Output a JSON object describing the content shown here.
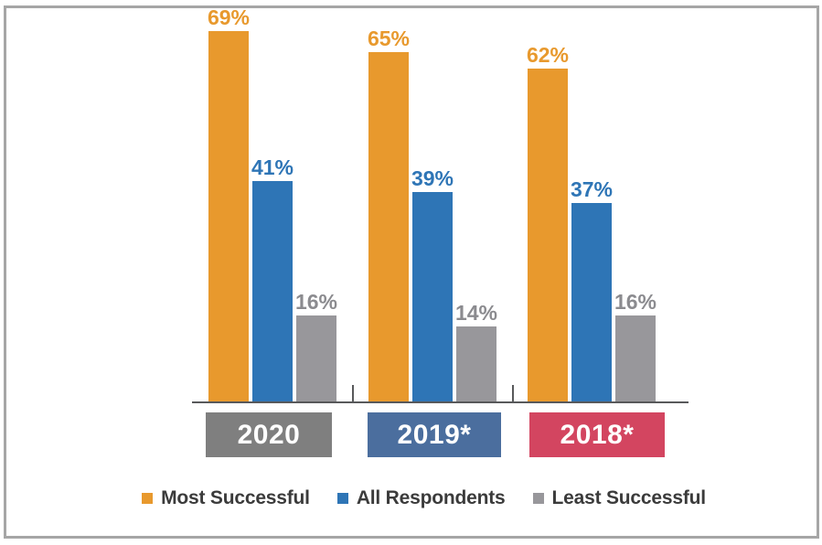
{
  "chart_data": {
    "type": "bar",
    "title": "",
    "categories": [
      "2020",
      "2019*",
      "2018*"
    ],
    "category_box_colors": [
      "#7F7F7F",
      "#4B6E9E",
      "#D34560"
    ],
    "series": [
      {
        "name": "Most Successful",
        "color": "#E8992D",
        "label_color": "#E8992D",
        "values": [
          69,
          65,
          62
        ],
        "labels": [
          "69%",
          "65%",
          "62%"
        ]
      },
      {
        "name": "All Respondents",
        "color": "#2E75B6",
        "label_color": "#2E75B6",
        "values": [
          41,
          39,
          37
        ],
        "labels": [
          "41%",
          "39%",
          "37%"
        ]
      },
      {
        "name": "Least Successful",
        "color": "#98979B",
        "label_color": "#8B8B8F",
        "values": [
          16,
          14,
          16
        ],
        "labels": [
          "16%",
          "14%",
          "16%"
        ]
      }
    ],
    "value_suffix": "%",
    "ylim": [
      0,
      75
    ],
    "grid": false,
    "legend_position": "bottom",
    "axis_color": "#58595B",
    "frame_border_color": "#A6A6A6",
    "background": "#FFFFFF"
  }
}
